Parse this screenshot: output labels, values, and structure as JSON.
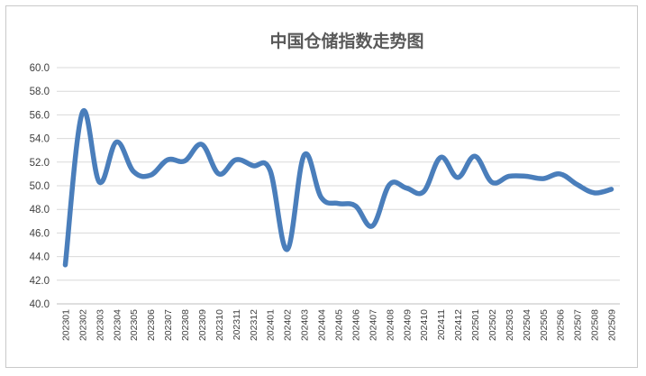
{
  "chart_data": {
    "type": "line",
    "title": "中国仓储指数走势图",
    "xlabel": "",
    "ylabel": "",
    "ylim": [
      40,
      60
    ],
    "yticks": [
      "40.0",
      "42.0",
      "44.0",
      "46.0",
      "48.0",
      "50.0",
      "52.0",
      "54.0",
      "56.0",
      "58.0",
      "60.0"
    ],
    "grid": true,
    "legend": "none",
    "line_color": "#4a7ebb",
    "categories": [
      "202301",
      "202302",
      "202303",
      "202304",
      "202305",
      "202306",
      "202307",
      "202308",
      "202309",
      "202310",
      "202311",
      "202312",
      "202401",
      "202402",
      "202403",
      "202404",
      "202405",
      "202406",
      "202407",
      "202408",
      "202409",
      "202410",
      "202411",
      "202412",
      "202501",
      "202502",
      "202503",
      "202504",
      "202505",
      "202506",
      "202507",
      "202508",
      "202509"
    ],
    "series": [
      {
        "values": [
          43.3,
          56.2,
          50.3,
          53.7,
          51.2,
          50.9,
          52.2,
          52.1,
          53.5,
          51.0,
          52.2,
          51.7,
          51.3,
          44.6,
          52.6,
          49.0,
          48.5,
          48.3,
          46.6,
          50.1,
          49.8,
          49.5,
          52.4,
          50.7,
          52.5,
          50.3,
          50.8,
          50.8,
          50.6,
          51.0,
          50.1,
          49.4,
          49.7
        ]
      }
    ]
  }
}
